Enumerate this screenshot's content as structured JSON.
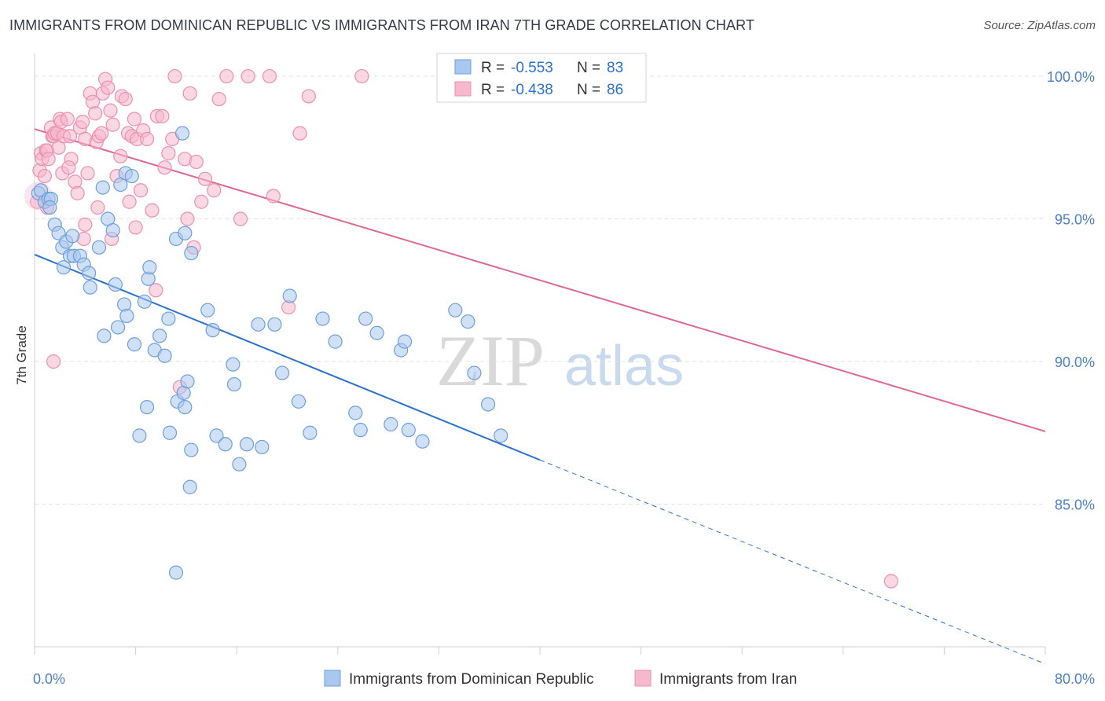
{
  "title": "IMMIGRANTS FROM DOMINICAN REPUBLIC VS IMMIGRANTS FROM IRAN 7TH GRADE CORRELATION CHART",
  "source": "Source: ZipAtlas.com",
  "watermark": {
    "zip": "ZIP",
    "atlas": "atlas"
  },
  "colors": {
    "blue_fill": "#a9c8ef",
    "blue_stroke": "#6f9edb",
    "blue_line": "#2c72d1",
    "pink_fill": "#f6b8cc",
    "pink_stroke": "#ec8fae",
    "pink_line": "#e0688f",
    "tick_label": "#4a7fc8",
    "grid": "#e3e3e3"
  },
  "legend": {
    "row1": {
      "r_label": "R = ",
      "r_value": "-0.553",
      "n_label": "N = ",
      "n_value": "83"
    },
    "row2": {
      "r_label": "R = ",
      "r_value": "-0.438",
      "n_label": "N = ",
      "n_value": "86"
    }
  },
  "chart_data": {
    "type": "scatter",
    "title": "IMMIGRANTS FROM DOMINICAN REPUBLIC VS IMMIGRANTS FROM IRAN 7TH GRADE CORRELATION CHART",
    "xlabel": "",
    "ylabel": "7th Grade",
    "xlim": [
      0,
      80
    ],
    "ylim": [
      80.0,
      100.8
    ],
    "x_tick_labels": [
      "0.0%",
      "80.0%"
    ],
    "y_ticks": [
      85,
      90,
      95,
      100
    ],
    "y_tick_labels": [
      "85.0%",
      "90.0%",
      "95.0%",
      "100.0%"
    ],
    "grid": true,
    "legend_position": "top-center",
    "series": [
      {
        "name": "Immigrants from Dominican Republic",
        "color": "blue",
        "r": -0.553,
        "n": 83,
        "trend": {
          "x0": 0,
          "y0": 93.75,
          "x1": 40,
          "y1": 86.55,
          "dash_to_x": 80,
          "dash_to_y": 79.4
        },
        "points": [
          [
            0.3,
            95.9
          ],
          [
            0.5,
            96.0
          ],
          [
            0.8,
            95.6
          ],
          [
            1.1,
            95.7
          ],
          [
            1.3,
            95.7
          ],
          [
            1.2,
            95.4
          ],
          [
            1.6,
            94.8
          ],
          [
            1.9,
            94.5
          ],
          [
            2.2,
            94.0
          ],
          [
            2.5,
            94.2
          ],
          [
            2.3,
            93.3
          ],
          [
            2.8,
            93.7
          ],
          [
            3.1,
            93.7
          ],
          [
            3.6,
            93.7
          ],
          [
            3.0,
            94.4
          ],
          [
            3.9,
            93.4
          ],
          [
            4.3,
            93.1
          ],
          [
            4.4,
            92.6
          ],
          [
            6.8,
            96.2
          ],
          [
            5.4,
            96.1
          ],
          [
            7.2,
            96.6
          ],
          [
            7.7,
            96.5
          ],
          [
            5.8,
            95.0
          ],
          [
            5.1,
            94.0
          ],
          [
            6.2,
            94.6
          ],
          [
            6.4,
            92.7
          ],
          [
            7.1,
            92.0
          ],
          [
            7.3,
            91.6
          ],
          [
            6.6,
            91.2
          ],
          [
            5.5,
            90.9
          ],
          [
            7.9,
            90.6
          ],
          [
            8.7,
            92.1
          ],
          [
            9.0,
            92.9
          ],
          [
            9.1,
            93.3
          ],
          [
            9.5,
            90.4
          ],
          [
            10.3,
            90.2
          ],
          [
            10.6,
            91.5
          ],
          [
            9.9,
            90.9
          ],
          [
            11.2,
            94.3
          ],
          [
            11.3,
            88.6
          ],
          [
            11.8,
            88.9
          ],
          [
            12.1,
            89.3
          ],
          [
            11.9,
            88.4
          ],
          [
            12.4,
            93.8
          ],
          [
            13.7,
            91.8
          ],
          [
            14.1,
            91.1
          ],
          [
            15.7,
            89.9
          ],
          [
            15.8,
            89.2
          ],
          [
            16.8,
            87.1
          ],
          [
            17.7,
            91.3
          ],
          [
            18.0,
            87.0
          ],
          [
            19.0,
            91.3
          ],
          [
            19.6,
            89.6
          ],
          [
            20.2,
            92.3
          ],
          [
            20.9,
            88.6
          ],
          [
            21.8,
            87.5
          ],
          [
            22.8,
            91.5
          ],
          [
            23.8,
            90.7
          ],
          [
            25.4,
            88.2
          ],
          [
            25.8,
            87.6
          ],
          [
            26.2,
            91.5
          ],
          [
            27.1,
            91.0
          ],
          [
            28.2,
            87.8
          ],
          [
            29.0,
            90.4
          ],
          [
            29.3,
            90.7
          ],
          [
            29.6,
            87.6
          ],
          [
            30.7,
            87.2
          ],
          [
            33.3,
            91.8
          ],
          [
            34.3,
            91.4
          ],
          [
            34.8,
            89.6
          ],
          [
            35.9,
            88.5
          ],
          [
            36.9,
            87.4
          ],
          [
            8.9,
            88.4
          ],
          [
            8.3,
            87.4
          ],
          [
            10.7,
            87.5
          ],
          [
            12.4,
            86.9
          ],
          [
            14.4,
            87.4
          ],
          [
            15.1,
            87.1
          ],
          [
            16.2,
            86.4
          ],
          [
            12.3,
            85.6
          ],
          [
            11.2,
            82.6
          ],
          [
            11.7,
            98.0
          ],
          [
            11.9,
            94.5
          ]
        ]
      },
      {
        "name": "Immigrants from Iran",
        "color": "pink",
        "r": -0.438,
        "n": 86,
        "trend": {
          "x0": 0,
          "y0": 98.15,
          "x1": 80,
          "y1": 87.55
        },
        "points": [
          [
            0.2,
            95.6
          ],
          [
            0.4,
            96.7
          ],
          [
            0.5,
            97.3
          ],
          [
            0.6,
            97.1
          ],
          [
            0.9,
            97.4
          ],
          [
            1.0,
            97.4
          ],
          [
            1.1,
            97.1
          ],
          [
            1.3,
            98.2
          ],
          [
            1.4,
            97.9
          ],
          [
            1.5,
            97.9
          ],
          [
            1.6,
            98.0
          ],
          [
            1.8,
            98.0
          ],
          [
            1.9,
            97.5
          ],
          [
            2.0,
            98.5
          ],
          [
            2.1,
            98.4
          ],
          [
            2.3,
            97.9
          ],
          [
            2.6,
            98.5
          ],
          [
            2.8,
            97.9
          ],
          [
            2.9,
            97.1
          ],
          [
            3.2,
            96.3
          ],
          [
            3.4,
            95.9
          ],
          [
            3.6,
            98.2
          ],
          [
            3.8,
            98.4
          ],
          [
            4.0,
            97.8
          ],
          [
            4.2,
            96.6
          ],
          [
            4.4,
            99.4
          ],
          [
            4.6,
            99.1
          ],
          [
            4.8,
            98.7
          ],
          [
            4.9,
            97.7
          ],
          [
            5.1,
            97.9
          ],
          [
            5.3,
            98.0
          ],
          [
            5.4,
            99.4
          ],
          [
            5.6,
            99.9
          ],
          [
            5.8,
            99.6
          ],
          [
            6.0,
            98.8
          ],
          [
            6.2,
            98.3
          ],
          [
            6.5,
            96.5
          ],
          [
            6.8,
            97.2
          ],
          [
            6.9,
            99.3
          ],
          [
            7.2,
            99.2
          ],
          [
            7.4,
            98.0
          ],
          [
            7.7,
            97.9
          ],
          [
            7.9,
            98.5
          ],
          [
            8.1,
            97.8
          ],
          [
            8.6,
            98.1
          ],
          [
            8.9,
            97.8
          ],
          [
            9.6,
            92.5
          ],
          [
            9.7,
            98.6
          ],
          [
            10.1,
            98.6
          ],
          [
            10.3,
            96.8
          ],
          [
            10.6,
            97.3
          ],
          [
            10.9,
            97.8
          ],
          [
            11.1,
            100.0
          ],
          [
            11.9,
            97.1
          ],
          [
            12.3,
            99.4
          ],
          [
            12.8,
            97.0
          ],
          [
            13.2,
            95.6
          ],
          [
            13.5,
            96.4
          ],
          [
            14.2,
            96.0
          ],
          [
            14.6,
            99.2
          ],
          [
            15.2,
            100.0
          ],
          [
            16.3,
            95.0
          ],
          [
            16.9,
            100.0
          ],
          [
            18.6,
            100.0
          ],
          [
            18.9,
            95.8
          ],
          [
            20.1,
            91.9
          ],
          [
            21.0,
            98.0
          ],
          [
            21.7,
            99.3
          ],
          [
            25.9,
            100.0
          ],
          [
            1.5,
            90.0
          ],
          [
            4.0,
            94.8
          ],
          [
            6.1,
            94.3
          ],
          [
            8.0,
            94.7
          ],
          [
            11.5,
            89.1
          ],
          [
            12.6,
            94.0
          ],
          [
            1.0,
            95.4
          ],
          [
            2.2,
            96.6
          ],
          [
            0.8,
            96.5
          ],
          [
            2.7,
            96.8
          ],
          [
            3.9,
            94.3
          ],
          [
            5.0,
            95.4
          ],
          [
            7.5,
            95.6
          ],
          [
            8.4,
            96.0
          ],
          [
            9.3,
            95.3
          ],
          [
            12.1,
            95.0
          ],
          [
            67.8,
            82.3
          ]
        ]
      }
    ]
  }
}
